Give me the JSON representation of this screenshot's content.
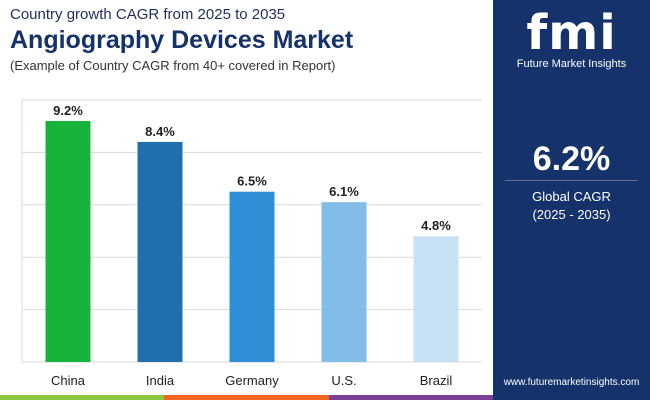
{
  "header": {
    "kicker": "Country growth CAGR from 2025 to 2035",
    "title": "Angiography Devices Market",
    "subtitle": "(Example of Country CAGR from 40+ covered in Report)"
  },
  "chart_data": {
    "type": "bar",
    "categories": [
      "China",
      "India",
      "Germany",
      "U.S.",
      "Brazil"
    ],
    "values": [
      9.2,
      8.4,
      6.5,
      6.1,
      4.8
    ],
    "value_labels": [
      "9.2%",
      "8.4%",
      "6.5%",
      "6.1%",
      "4.8%"
    ],
    "bar_colors": [
      "#17b33c",
      "#1f6fad",
      "#2e8fd6",
      "#82bde8",
      "#c7e1f4"
    ],
    "ylim": [
      0,
      10
    ],
    "grid": true,
    "title": "",
    "xlabel": "",
    "ylabel": ""
  },
  "side_panel": {
    "logo_text": "fmi",
    "logo_subtitle": "Future Market Insights",
    "global_value": "6.2%",
    "global_label": "Global CAGR",
    "global_period": "(2025 - 2035)",
    "website": "www.futuremarketinsights.com",
    "background_color": "#16326b"
  },
  "footer": {
    "stripe_colors": [
      "#8dc63f",
      "#f26522",
      "#7b3f98"
    ]
  }
}
